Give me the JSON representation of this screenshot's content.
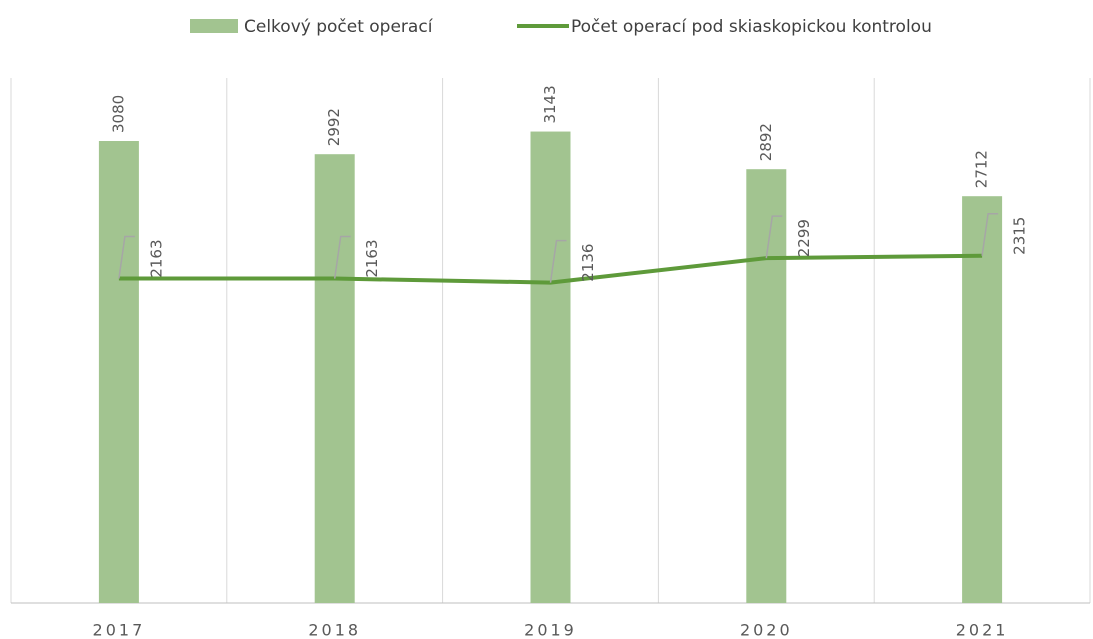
{
  "chart_data": {
    "type": "bar",
    "categories": [
      "2017",
      "2018",
      "2019",
      "2020",
      "2021"
    ],
    "series": [
      {
        "name": "Celkový počet operací",
        "type": "bar",
        "color": "#a2c490",
        "values": [
          3080,
          2992,
          3143,
          2892,
          2712
        ]
      },
      {
        "name": "Počet operací pod skiaskopickou kontrolou",
        "type": "line",
        "color": "#5e9a3a",
        "values": [
          2163,
          2163,
          2136,
          2299,
          2315
        ]
      }
    ],
    "ylim": [
      0,
      3500
    ],
    "grid": true,
    "legend": "top"
  }
}
